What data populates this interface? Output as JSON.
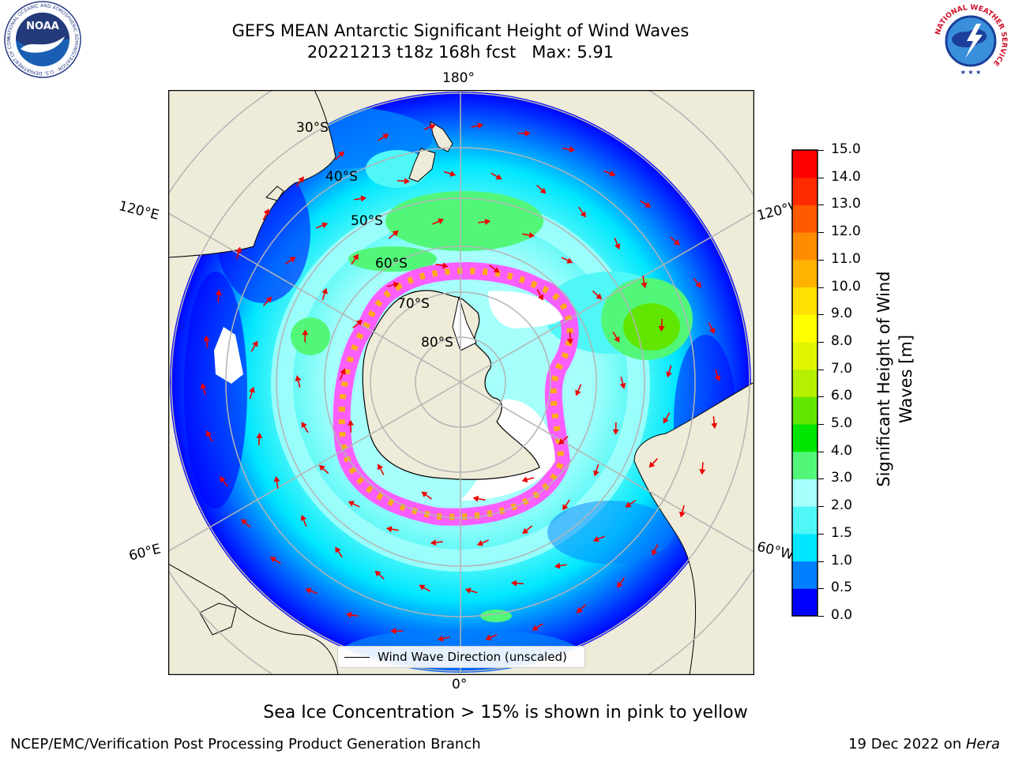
{
  "header": {
    "title_line1": "GEFS MEAN Antarctic Significant Height of Wind Waves",
    "title_line2": "20221213 t18z 168h fcst   Max: 5.91"
  },
  "logos": {
    "noaa_text": "NOAA",
    "noaa_ring_text": "NATIONAL OCEANIC AND ATMOSPHERIC ADMINISTRATION · U.S. DEPARTMENT OF COMMERCE",
    "nws_ring_text": "NATIONAL WEATHER SERVICE"
  },
  "map": {
    "projection": "south-polar-stereographic",
    "longitude_labels": {
      "top": "180°",
      "upper_left": "120°E",
      "upper_right": "120°W",
      "lower_left": "60°E",
      "lower_right": "60°W",
      "bottom": "0°"
    },
    "latitude_labels": [
      "30°S",
      "40°S",
      "50°S",
      "60°S",
      "70°S",
      "80°S"
    ],
    "colors": {
      "land": "#eeebd9",
      "gridline": "#b4b4b4",
      "arrow": "#ee0000",
      "ice": "#ff55ff"
    }
  },
  "legend": {
    "label": "Wind Wave Direction (unscaled)"
  },
  "colorbar": {
    "label": "Significant Height of Wind Waves [m]",
    "label_line1": "Significant Height of Wind",
    "label_line2": "Waves [m]",
    "ticks": [
      "0.0",
      "0.5",
      "1.0",
      "1.5",
      "2.0",
      "3.0",
      "4.0",
      "5.0",
      "6.0",
      "7.0",
      "8.0",
      "9.0",
      "10.0",
      "11.0",
      "12.0",
      "13.0",
      "14.0",
      "15.0"
    ],
    "colors": [
      "#0000ff",
      "#0080ff",
      "#00e6ff",
      "#4ff7f7",
      "#a6fffb",
      "#52f77a",
      "#00e600",
      "#60e600",
      "#b4f000",
      "#e1f500",
      "#ffff00",
      "#ffe000",
      "#ffb300",
      "#ff8c00",
      "#ff5a00",
      "#ff2a00",
      "#ff0000"
    ]
  },
  "notes": {
    "sea_ice": "Sea Ice Concentration > 15% is shown in pink to yellow"
  },
  "footer": {
    "left": "NCEP/EMC/Verification Post Processing Product Generation Branch",
    "date": "19 Dec 2022 on ",
    "machine": "Hera"
  }
}
